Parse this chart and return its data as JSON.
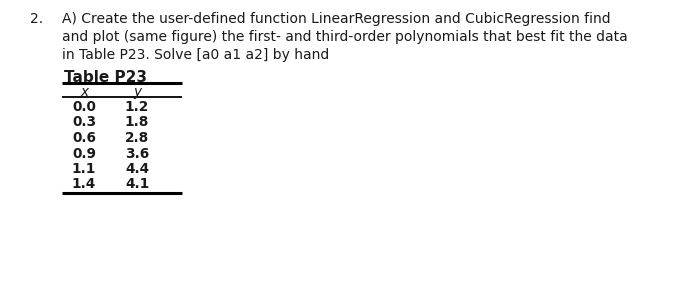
{
  "line1_num": "2.",
  "line1_text": "A) Create the user-defined function LinearRegression and CubicRegression find",
  "line2_text": "and plot (same figure) the first- and third-order polynomials that best fit the data",
  "line3_text": "in Table P23. Solve [a0 a1 a2] by hand",
  "table_title": "Table P23",
  "col_x_label": "x",
  "col_y_label": "y",
  "x_data": [
    "0.0",
    "0.3",
    "0.6",
    "0.9",
    "1.1",
    "1.4"
  ],
  "y_data": [
    "1.2",
    "1.8",
    "2.8",
    "3.6",
    "4.4",
    "4.1"
  ],
  "bg_color": "#ffffff",
  "text_color": "#1a1a1a",
  "body_fontsize": 10.0,
  "table_title_fontsize": 11.0,
  "data_fontsize": 9.8
}
